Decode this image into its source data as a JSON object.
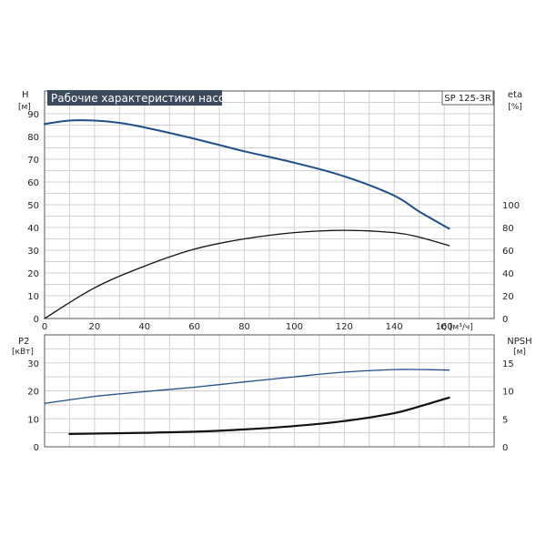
{
  "chart_data": [
    {
      "type": "line",
      "title": "Рабочие характеристики насоса",
      "model_label": "SP 125-3R",
      "xlabel": "Q [м³/ч]",
      "xlim": [
        0,
        180
      ],
      "x_ticks": [
        0,
        20,
        40,
        60,
        80,
        100,
        120,
        140,
        160
      ],
      "ylabel_left": "H",
      "ylabel_left_unit": "[м]",
      "ylim_left": [
        0,
        100
      ],
      "y_ticks_left": [
        0,
        10,
        20,
        30,
        40,
        50,
        60,
        70,
        80,
        90
      ],
      "ylabel_right": "eta",
      "ylabel_right_unit": "[%]",
      "ylim_right": [
        0,
        200
      ],
      "y_ticks_right": [
        0,
        20,
        40,
        60,
        80,
        100
      ],
      "grid": true,
      "series": [
        {
          "axis": "left",
          "color": "#1f4f8a",
          "stroke": 2,
          "x": [
            0,
            10,
            20,
            30,
            40,
            60,
            80,
            100,
            120,
            140,
            150,
            162
          ],
          "y": [
            85.5,
            87,
            87,
            86,
            84,
            79,
            73.5,
            68.5,
            62.5,
            54,
            47,
            39.5
          ]
        },
        {
          "axis": "right",
          "color": "#111111",
          "stroke": 1.3,
          "x": [
            0,
            20,
            40,
            60,
            80,
            100,
            120,
            140,
            150,
            162
          ],
          "y": [
            0,
            27,
            46,
            61,
            70,
            75.5,
            77.5,
            75.5,
            71.5,
            64
          ]
        }
      ]
    },
    {
      "type": "line",
      "title": "",
      "xlim": [
        0,
        180
      ],
      "ylabel_left": "P2",
      "ylabel_left_unit": "[кВт]",
      "ylim_left": [
        0,
        40
      ],
      "y_ticks_left": [
        0,
        10,
        20,
        30
      ],
      "ylabel_right": "NPSH",
      "ylabel_right_unit": "[м]",
      "ylim_right": [
        0,
        20
      ],
      "y_ticks_right": [
        0,
        5,
        10,
        15
      ],
      "grid": true,
      "series": [
        {
          "axis": "left",
          "color": "#1f4f8a",
          "stroke": 1.3,
          "x": [
            0,
            20,
            40,
            60,
            80,
            100,
            120,
            140,
            150,
            162
          ],
          "y": [
            15.5,
            18,
            19.7,
            21.3,
            23.2,
            25,
            26.7,
            27.6,
            27.6,
            27.4
          ]
        },
        {
          "axis": "right",
          "color": "#111111",
          "stroke": 2.2,
          "x": [
            10,
            40,
            60,
            80,
            100,
            120,
            140,
            150,
            162
          ],
          "y": [
            2.3,
            2.5,
            2.7,
            3.1,
            3.7,
            4.6,
            6.0,
            7.2,
            8.8
          ]
        }
      ]
    }
  ]
}
